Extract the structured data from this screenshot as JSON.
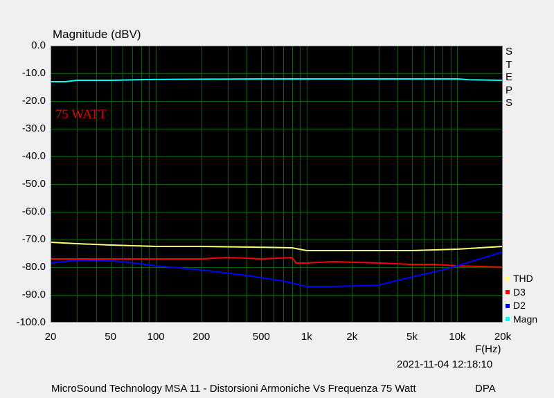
{
  "chart_data": {
    "type": "line",
    "ylabel": "Magnitude (dBV)",
    "xlabel": "F(Hz)",
    "xscale": "log",
    "xlim": [
      20,
      20000
    ],
    "ylim": [
      -100,
      0
    ],
    "yticks": [
      "0.0",
      "-10.0",
      "-20.0",
      "-30.0",
      "-40.0",
      "-50.0",
      "-60.0",
      "-70.0",
      "-80.0",
      "-90.0",
      "-100.0"
    ],
    "xticks": [
      {
        "value": 20,
        "label": "20"
      },
      {
        "value": 50,
        "label": "50"
      },
      {
        "value": 100,
        "label": "100"
      },
      {
        "value": 200,
        "label": "200"
      },
      {
        "value": 500,
        "label": "500"
      },
      {
        "value": 1000,
        "label": "1k"
      },
      {
        "value": 2000,
        "label": "2k"
      },
      {
        "value": 5000,
        "label": "5k"
      },
      {
        "value": 10000,
        "label": "10k"
      },
      {
        "value": 20000,
        "label": "20k"
      }
    ],
    "grid": true,
    "background": "#000000",
    "grid_color": "#006400",
    "annotation": "75 WATT",
    "side_label": [
      "S",
      "T",
      "E",
      "P",
      "S"
    ],
    "legend_position": "bottom-right",
    "series": [
      {
        "name": "THD",
        "color": "#ffff80",
        "x": [
          20,
          30,
          50,
          100,
          200,
          500,
          800,
          1000,
          2000,
          5000,
          10000,
          20000
        ],
        "y": [
          -71,
          -71.5,
          -72,
          -72.5,
          -72.5,
          -72.8,
          -73,
          -74,
          -74,
          -74,
          -73.5,
          -72.5
        ]
      },
      {
        "name": "D3",
        "color": "#ff0000",
        "x": [
          20,
          50,
          100,
          200,
          300,
          500,
          800,
          850,
          1000,
          1500,
          3000,
          5000,
          7000,
          10000,
          20000
        ],
        "y": [
          -77,
          -77,
          -77,
          -77,
          -76.5,
          -77,
          -76.5,
          -78.5,
          -78.5,
          -78,
          -78.5,
          -79,
          -79,
          -79.5,
          -80
        ]
      },
      {
        "name": "D2",
        "color": "#0000ff",
        "x": [
          20,
          30,
          40,
          60,
          100,
          200,
          400,
          700,
          1000,
          1500,
          3000,
          5000,
          8000,
          10000,
          20000
        ],
        "y": [
          -78.5,
          -77.5,
          -77.5,
          -78,
          -79.5,
          -81,
          -83,
          -85,
          -87,
          -87,
          -86.5,
          -83.5,
          -81,
          -79.5,
          -74.5
        ]
      },
      {
        "name": "Magn",
        "color": "#00ffff",
        "x": [
          20,
          25,
          30,
          50,
          100,
          500,
          1000,
          5000,
          10000,
          12000,
          20000
        ],
        "y": [
          -13,
          -13,
          -12.5,
          -12.5,
          -12.2,
          -12,
          -12,
          -12,
          -12,
          -12.3,
          -12.5
        ]
      }
    ],
    "legend_order": [
      "THD",
      "D3",
      "D2",
      "Magn"
    ],
    "timestamp": "2021-11-04 12:18:10"
  },
  "footer": {
    "title": "MicroSound Technology MSA 11 - Distorsioni Armoniche Vs Frequenza 75 Watt",
    "right": "DPA"
  }
}
